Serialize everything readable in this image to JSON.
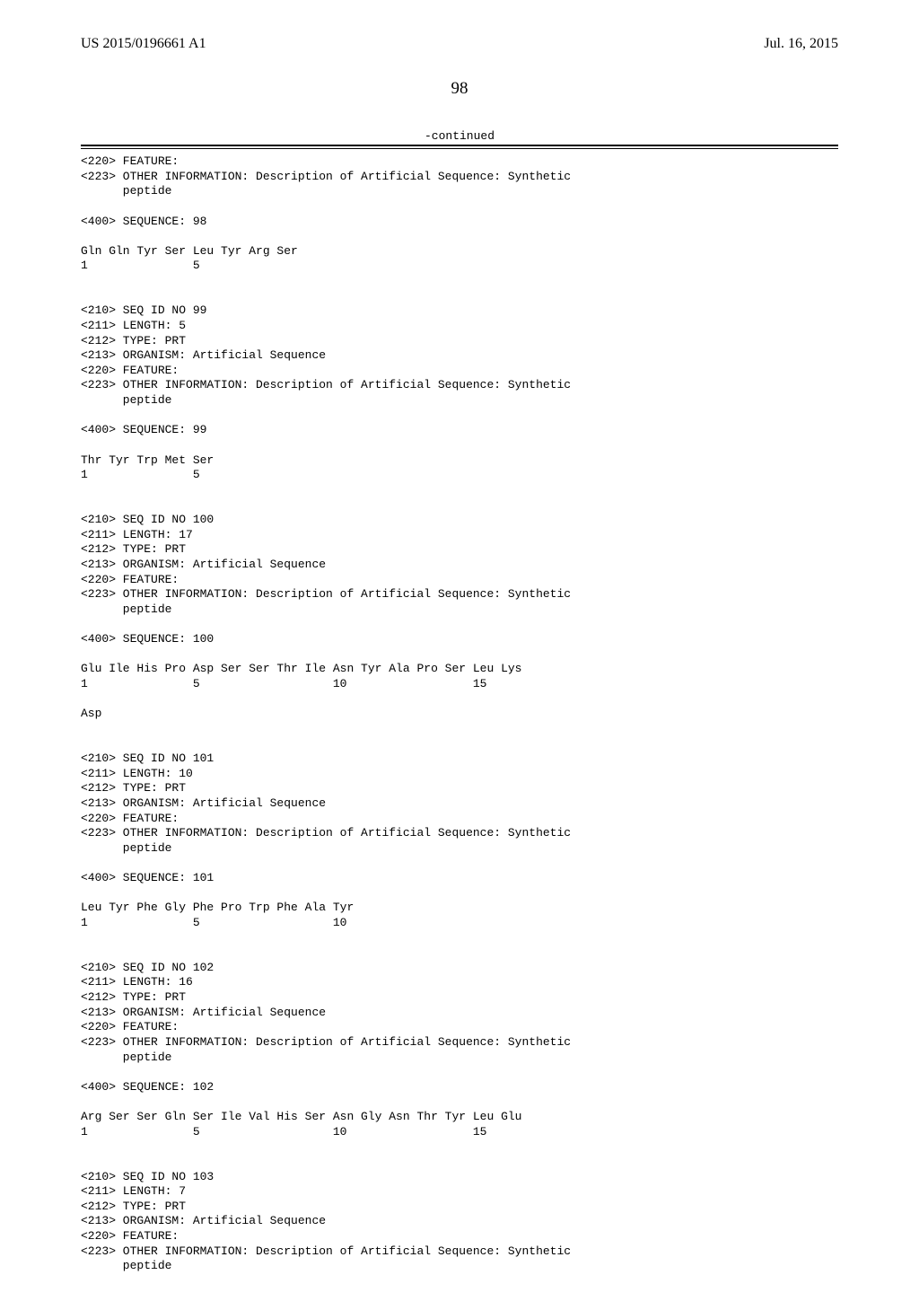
{
  "header": {
    "pub_number": "US 2015/0196661 A1",
    "pub_date": "Jul. 16, 2015"
  },
  "page_number": "98",
  "continued_label": "-continued",
  "sequence_text": "<220> FEATURE:\n<223> OTHER INFORMATION: Description of Artificial Sequence: Synthetic\n      peptide\n\n<400> SEQUENCE: 98\n\nGln Gln Tyr Ser Leu Tyr Arg Ser\n1               5\n\n\n<210> SEQ ID NO 99\n<211> LENGTH: 5\n<212> TYPE: PRT\n<213> ORGANISM: Artificial Sequence\n<220> FEATURE:\n<223> OTHER INFORMATION: Description of Artificial Sequence: Synthetic\n      peptide\n\n<400> SEQUENCE: 99\n\nThr Tyr Trp Met Ser\n1               5\n\n\n<210> SEQ ID NO 100\n<211> LENGTH: 17\n<212> TYPE: PRT\n<213> ORGANISM: Artificial Sequence\n<220> FEATURE:\n<223> OTHER INFORMATION: Description of Artificial Sequence: Synthetic\n      peptide\n\n<400> SEQUENCE: 100\n\nGlu Ile His Pro Asp Ser Ser Thr Ile Asn Tyr Ala Pro Ser Leu Lys\n1               5                   10                  15\n\nAsp\n\n\n<210> SEQ ID NO 101\n<211> LENGTH: 10\n<212> TYPE: PRT\n<213> ORGANISM: Artificial Sequence\n<220> FEATURE:\n<223> OTHER INFORMATION: Description of Artificial Sequence: Synthetic\n      peptide\n\n<400> SEQUENCE: 101\n\nLeu Tyr Phe Gly Phe Pro Trp Phe Ala Tyr\n1               5                   10\n\n\n<210> SEQ ID NO 102\n<211> LENGTH: 16\n<212> TYPE: PRT\n<213> ORGANISM: Artificial Sequence\n<220> FEATURE:\n<223> OTHER INFORMATION: Description of Artificial Sequence: Synthetic\n      peptide\n\n<400> SEQUENCE: 102\n\nArg Ser Ser Gln Ser Ile Val His Ser Asn Gly Asn Thr Tyr Leu Glu\n1               5                   10                  15\n\n\n<210> SEQ ID NO 103\n<211> LENGTH: 7\n<212> TYPE: PRT\n<213> ORGANISM: Artificial Sequence\n<220> FEATURE:\n<223> OTHER INFORMATION: Description of Artificial Sequence: Synthetic\n      peptide"
}
